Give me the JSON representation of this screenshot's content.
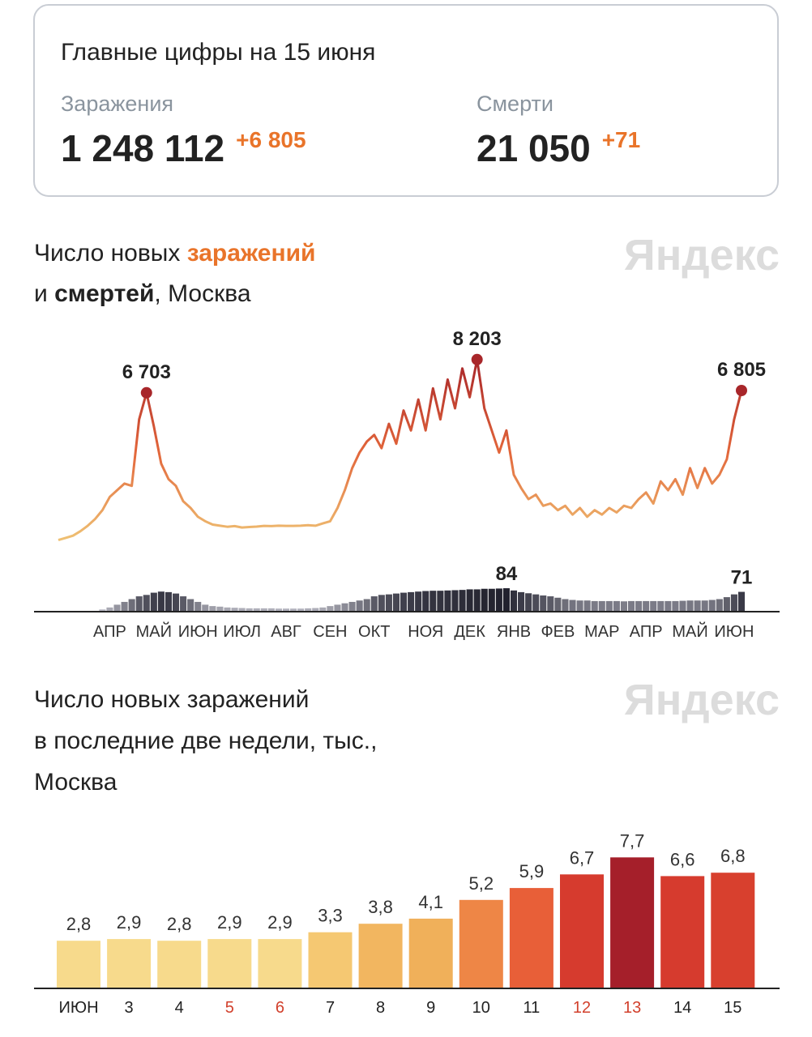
{
  "summary": {
    "title": "Главные цифры на 15 июня",
    "items": [
      {
        "label": "Заражения",
        "value": "1 248 112",
        "delta": "+6 805"
      },
      {
        "label": "Смерти",
        "value": "21 050",
        "delta": "+71"
      }
    ]
  },
  "chart_data": [
    {
      "type": "line",
      "title": [
        [
          {
            "text": "Число новых "
          },
          {
            "text": "заражений",
            "color": "#e9742a",
            "bold": true
          }
        ],
        [
          {
            "text": "и "
          },
          {
            "text": "смертей",
            "bold": true
          },
          {
            "text": ", Москва"
          }
        ]
      ],
      "watermark": "Яндекс",
      "categories": [
        null,
        null,
        null,
        null,
        null,
        null,
        null,
        "АПР",
        null,
        null,
        null,
        null,
        null,
        "МАЙ",
        null,
        null,
        null,
        null,
        null,
        "ИЮН",
        null,
        null,
        null,
        null,
        null,
        "ИЮЛ",
        null,
        null,
        null,
        null,
        null,
        "АВГ",
        null,
        null,
        null,
        null,
        null,
        "СЕН",
        null,
        null,
        null,
        null,
        null,
        "ОКТ",
        null,
        null,
        null,
        null,
        null,
        null,
        "НОЯ",
        null,
        null,
        null,
        null,
        null,
        "ДЕК",
        null,
        null,
        null,
        null,
        null,
        "ЯНВ",
        null,
        null,
        null,
        null,
        null,
        "ФЕВ",
        null,
        null,
        null,
        null,
        null,
        "МАР",
        null,
        null,
        null,
        null,
        null,
        "АПР",
        null,
        null,
        null,
        null,
        null,
        "МАЙ",
        null,
        null,
        null,
        null,
        null,
        "ИЮН",
        null
      ],
      "ylim": [
        0,
        9000
      ],
      "y2lim": [
        0,
        90
      ],
      "series": [
        {
          "colors": [
            "#efc274",
            "#e2653a",
            "#a8262a"
          ],
          "marker_color": "#a8262a",
          "values": [
            50,
            150,
            250,
            450,
            700,
            1000,
            1400,
            2000,
            2300,
            2600,
            2500,
            5500,
            6703,
            5200,
            3500,
            2800,
            2500,
            1800,
            1500,
            1100,
            900,
            750,
            700,
            650,
            680,
            620,
            640,
            660,
            690,
            680,
            700,
            690,
            690,
            700,
            720,
            700,
            800,
            900,
            1500,
            2300,
            3300,
            4000,
            4500,
            4800,
            4200,
            5300,
            4400,
            5900,
            5000,
            6400,
            5000,
            6900,
            5500,
            7300,
            6000,
            7800,
            6500,
            8203,
            6000,
            5000,
            4000,
            5000,
            3000,
            2400,
            1900,
            2100,
            1600,
            1700,
            1400,
            1600,
            1200,
            1500,
            1100,
            1400,
            1200,
            1500,
            1300,
            1600,
            1500,
            1900,
            2200,
            1700,
            2700,
            2300,
            2800,
            2100,
            3300,
            2400,
            3300,
            2600,
            3000,
            3700,
            5500,
            6805
          ],
          "value_labels": [
            null,
            null,
            null,
            null,
            null,
            null,
            null,
            null,
            null,
            null,
            null,
            null,
            "6 703",
            null,
            null,
            null,
            null,
            null,
            null,
            null,
            null,
            null,
            null,
            null,
            null,
            null,
            null,
            null,
            null,
            null,
            null,
            null,
            null,
            null,
            null,
            null,
            null,
            null,
            null,
            null,
            null,
            null,
            null,
            null,
            null,
            null,
            null,
            null,
            null,
            null,
            null,
            null,
            null,
            null,
            null,
            null,
            null,
            "8 203",
            null,
            null,
            null,
            null,
            null,
            null,
            null,
            null,
            null,
            null,
            null,
            null,
            null,
            null,
            null,
            null,
            null,
            null,
            null,
            null,
            null,
            null,
            null,
            null,
            null,
            null,
            null,
            null,
            null,
            null,
            null,
            null,
            null,
            null,
            null,
            "6 805"
          ]
        },
        {
          "type": "bar",
          "axis": "y2",
          "colors": [
            "#c6c6d0",
            "#151522"
          ],
          "values": [
            0,
            0,
            0,
            0,
            1,
            3,
            8,
            15,
            25,
            35,
            45,
            55,
            60,
            68,
            72,
            70,
            65,
            55,
            45,
            35,
            25,
            20,
            18,
            15,
            14,
            13,
            12,
            12,
            12,
            12,
            11,
            11,
            11,
            11,
            12,
            13,
            15,
            20,
            25,
            30,
            35,
            40,
            45,
            55,
            60,
            62,
            65,
            68,
            70,
            72,
            74,
            75,
            75,
            76,
            77,
            78,
            80,
            80,
            82,
            82,
            83,
            84,
            76,
            70,
            66,
            62,
            58,
            55,
            50,
            45,
            42,
            40,
            40,
            38,
            38,
            38,
            38,
            37,
            38,
            38,
            38,
            38,
            38,
            38,
            38,
            39,
            40,
            40,
            40,
            42,
            45,
            52,
            62,
            71
          ],
          "value_labels": [
            null,
            null,
            null,
            null,
            null,
            null,
            null,
            null,
            null,
            null,
            null,
            null,
            null,
            null,
            null,
            null,
            null,
            null,
            null,
            null,
            null,
            null,
            null,
            null,
            null,
            null,
            null,
            null,
            null,
            null,
            null,
            null,
            null,
            null,
            null,
            null,
            null,
            null,
            null,
            null,
            null,
            null,
            null,
            null,
            null,
            null,
            null,
            null,
            null,
            null,
            null,
            null,
            null,
            null,
            null,
            null,
            null,
            null,
            null,
            null,
            null,
            "84",
            null,
            null,
            null,
            null,
            null,
            null,
            null,
            null,
            null,
            null,
            null,
            null,
            null,
            null,
            null,
            null,
            null,
            null,
            null,
            null,
            null,
            null,
            null,
            null,
            null,
            null,
            null,
            null,
            null,
            null,
            null,
            "71"
          ]
        }
      ]
    },
    {
      "type": "bar",
      "title": [
        "Число новых заражений",
        "в последние две недели, тыс.,",
        "Москва"
      ],
      "watermark": "Яндекс",
      "categories": [
        "ИЮН",
        "3",
        "4",
        "5",
        "6",
        "7",
        "8",
        "9",
        "10",
        "11",
        "12",
        "13",
        "14",
        "15"
      ],
      "category_colors": [
        "#222222",
        "#222222",
        "#222222",
        "#d2402c",
        "#d2402c",
        "#222222",
        "#222222",
        "#222222",
        "#222222",
        "#222222",
        "#d2402c",
        "#d2402c",
        "#222222",
        "#222222"
      ],
      "values": [
        2.8,
        2.9,
        2.8,
        2.9,
        2.9,
        3.3,
        3.8,
        4.1,
        5.2,
        5.9,
        6.7,
        7.7,
        6.6,
        6.8
      ],
      "value_labels": [
        "2,8",
        "2,9",
        "2,8",
        "2,9",
        "2,9",
        "3,3",
        "3,8",
        "4,1",
        "5,2",
        "5,9",
        "6,7",
        "7,7",
        "6,6",
        "6,8"
      ],
      "colors": [
        "#f7da8c",
        "#f7da8c",
        "#f7da8c",
        "#f7da8c",
        "#f7da8c",
        "#f5c872",
        "#f2b660",
        "#f0b05a",
        "#ee8646",
        "#e85f38",
        "#d63b2e",
        "#a51f2a",
        "#d63b2e",
        "#d8402e"
      ],
      "ylim": [
        0,
        8
      ]
    }
  ]
}
